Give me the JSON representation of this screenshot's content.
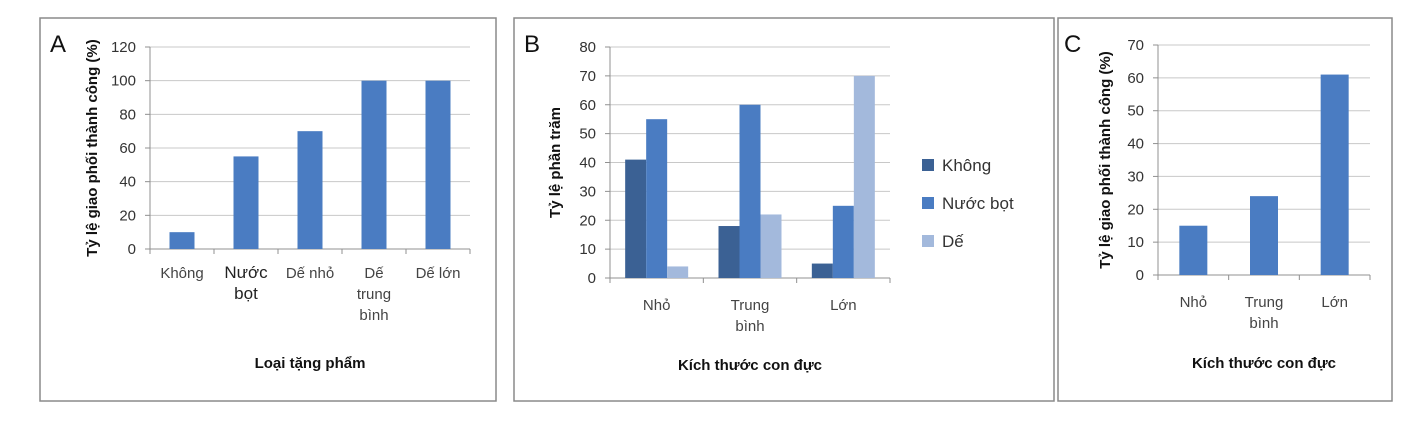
{
  "colors": {
    "series_khong": "#3b6194",
    "series_nuoc_bot": "#4a7cc2",
    "series_de": "#a3b9dc",
    "single_series": "#4a7cc2"
  },
  "chart_data": [
    {
      "panel": "A",
      "type": "bar",
      "title": "",
      "xlabel": "Loại tặng phẩm",
      "ylabel": "Tỷ lệ giao phối thành công (%)",
      "categories": [
        [
          "Không"
        ],
        [
          "Nước",
          "bọt"
        ],
        [
          "Dế nhỏ"
        ],
        [
          "Dế",
          "trung",
          "bình"
        ],
        [
          "Dế lớn"
        ]
      ],
      "values": [
        10,
        55,
        70,
        100,
        100
      ],
      "ylim": [
        0,
        120
      ],
      "yticks": [
        0,
        20,
        40,
        60,
        80,
        100,
        120
      ],
      "grid": true
    },
    {
      "panel": "B",
      "type": "bar",
      "title": "",
      "xlabel": "Kích thước con đực",
      "ylabel": "Tỷ lệ phần trăm",
      "categories": [
        [
          "Nhỏ"
        ],
        [
          "Trung",
          "bình"
        ],
        [
          "Lớn"
        ]
      ],
      "series": [
        {
          "name": "Không",
          "values": [
            41,
            18,
            5
          ]
        },
        {
          "name": "Nước bọt",
          "values": [
            55,
            60,
            25
          ]
        },
        {
          "name": "Dế",
          "values": [
            4,
            22,
            70
          ]
        }
      ],
      "ylim": [
        0,
        80
      ],
      "yticks": [
        0,
        10,
        20,
        30,
        40,
        50,
        60,
        70,
        80
      ],
      "grid": true,
      "legend": "right"
    },
    {
      "panel": "C",
      "type": "bar",
      "title": "",
      "xlabel": "Kích thước con đực",
      "ylabel": "Tỷ lệ giao phối thành công (%)",
      "categories": [
        [
          "Nhỏ"
        ],
        [
          "Trung",
          "bình"
        ],
        [
          "Lớn"
        ]
      ],
      "values": [
        15,
        24,
        61
      ],
      "ylim": [
        0,
        70
      ],
      "yticks": [
        0,
        10,
        20,
        30,
        40,
        50,
        60,
        70
      ],
      "grid": true
    }
  ]
}
